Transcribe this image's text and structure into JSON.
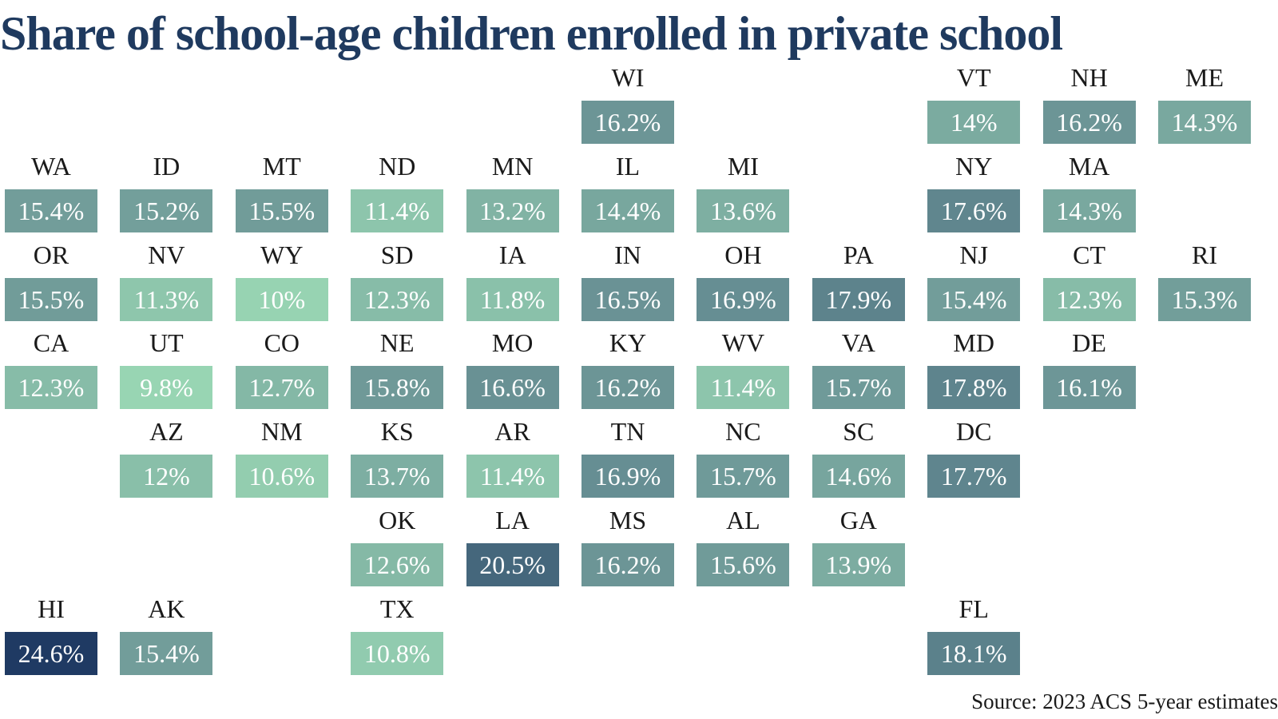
{
  "title": "Share of school-age children enrolled in private school",
  "source": "Source: 2023 ACS 5-year estimates",
  "color_scale": {
    "min_value": 9.8,
    "max_value": 24.6,
    "min_color": "#98d5b3",
    "mid_color": "#6a9295",
    "max_color": "#1f3a63"
  },
  "chart_data": {
    "type": "heatmap",
    "title": "Share of school-age children enrolled in private school",
    "unit": "%",
    "states": [
      {
        "abbr": "WI",
        "value": 16.2,
        "label": "16.2%",
        "row": 0,
        "col": 5
      },
      {
        "abbr": "VT",
        "value": 14,
        "label": "14%",
        "row": 0,
        "col": 8
      },
      {
        "abbr": "NH",
        "value": 16.2,
        "label": "16.2%",
        "row": 0,
        "col": 9
      },
      {
        "abbr": "ME",
        "value": 14.3,
        "label": "14.3%",
        "row": 0,
        "col": 10
      },
      {
        "abbr": "WA",
        "value": 15.4,
        "label": "15.4%",
        "row": 1,
        "col": 0
      },
      {
        "abbr": "ID",
        "value": 15.2,
        "label": "15.2%",
        "row": 1,
        "col": 1
      },
      {
        "abbr": "MT",
        "value": 15.5,
        "label": "15.5%",
        "row": 1,
        "col": 2
      },
      {
        "abbr": "ND",
        "value": 11.4,
        "label": "11.4%",
        "row": 1,
        "col": 3
      },
      {
        "abbr": "MN",
        "value": 13.2,
        "label": "13.2%",
        "row": 1,
        "col": 4
      },
      {
        "abbr": "IL",
        "value": 14.4,
        "label": "14.4%",
        "row": 1,
        "col": 5
      },
      {
        "abbr": "MI",
        "value": 13.6,
        "label": "13.6%",
        "row": 1,
        "col": 6
      },
      {
        "abbr": "NY",
        "value": 17.6,
        "label": "17.6%",
        "row": 1,
        "col": 8
      },
      {
        "abbr": "MA",
        "value": 14.3,
        "label": "14.3%",
        "row": 1,
        "col": 9
      },
      {
        "abbr": "OR",
        "value": 15.5,
        "label": "15.5%",
        "row": 2,
        "col": 0
      },
      {
        "abbr": "NV",
        "value": 11.3,
        "label": "11.3%",
        "row": 2,
        "col": 1
      },
      {
        "abbr": "WY",
        "value": 10,
        "label": "10%",
        "row": 2,
        "col": 2
      },
      {
        "abbr": "SD",
        "value": 12.3,
        "label": "12.3%",
        "row": 2,
        "col": 3
      },
      {
        "abbr": "IA",
        "value": 11.8,
        "label": "11.8%",
        "row": 2,
        "col": 4
      },
      {
        "abbr": "IN",
        "value": 16.5,
        "label": "16.5%",
        "row": 2,
        "col": 5
      },
      {
        "abbr": "OH",
        "value": 16.9,
        "label": "16.9%",
        "row": 2,
        "col": 6
      },
      {
        "abbr": "PA",
        "value": 17.9,
        "label": "17.9%",
        "row": 2,
        "col": 7
      },
      {
        "abbr": "NJ",
        "value": 15.4,
        "label": "15.4%",
        "row": 2,
        "col": 8
      },
      {
        "abbr": "CT",
        "value": 12.3,
        "label": "12.3%",
        "row": 2,
        "col": 9
      },
      {
        "abbr": "RI",
        "value": 15.3,
        "label": "15.3%",
        "row": 2,
        "col": 10
      },
      {
        "abbr": "CA",
        "value": 12.3,
        "label": "12.3%",
        "row": 3,
        "col": 0
      },
      {
        "abbr": "UT",
        "value": 9.8,
        "label": "9.8%",
        "row": 3,
        "col": 1
      },
      {
        "abbr": "CO",
        "value": 12.7,
        "label": "12.7%",
        "row": 3,
        "col": 2
      },
      {
        "abbr": "NE",
        "value": 15.8,
        "label": "15.8%",
        "row": 3,
        "col": 3
      },
      {
        "abbr": "MO",
        "value": 16.6,
        "label": "16.6%",
        "row": 3,
        "col": 4
      },
      {
        "abbr": "KY",
        "value": 16.2,
        "label": "16.2%",
        "row": 3,
        "col": 5
      },
      {
        "abbr": "WV",
        "value": 11.4,
        "label": "11.4%",
        "row": 3,
        "col": 6
      },
      {
        "abbr": "VA",
        "value": 15.7,
        "label": "15.7%",
        "row": 3,
        "col": 7
      },
      {
        "abbr": "MD",
        "value": 17.8,
        "label": "17.8%",
        "row": 3,
        "col": 8
      },
      {
        "abbr": "DE",
        "value": 16.1,
        "label": "16.1%",
        "row": 3,
        "col": 9
      },
      {
        "abbr": "AZ",
        "value": 12,
        "label": "12%",
        "row": 4,
        "col": 1
      },
      {
        "abbr": "NM",
        "value": 10.6,
        "label": "10.6%",
        "row": 4,
        "col": 2
      },
      {
        "abbr": "KS",
        "value": 13.7,
        "label": "13.7%",
        "row": 4,
        "col": 3
      },
      {
        "abbr": "AR",
        "value": 11.4,
        "label": "11.4%",
        "row": 4,
        "col": 4
      },
      {
        "abbr": "TN",
        "value": 16.9,
        "label": "16.9%",
        "row": 4,
        "col": 5
      },
      {
        "abbr": "NC",
        "value": 15.7,
        "label": "15.7%",
        "row": 4,
        "col": 6
      },
      {
        "abbr": "SC",
        "value": 14.6,
        "label": "14.6%",
        "row": 4,
        "col": 7
      },
      {
        "abbr": "DC",
        "value": 17.7,
        "label": "17.7%",
        "row": 4,
        "col": 8
      },
      {
        "abbr": "OK",
        "value": 12.6,
        "label": "12.6%",
        "row": 5,
        "col": 3
      },
      {
        "abbr": "LA",
        "value": 20.5,
        "label": "20.5%",
        "row": 5,
        "col": 4
      },
      {
        "abbr": "MS",
        "value": 16.2,
        "label": "16.2%",
        "row": 5,
        "col": 5
      },
      {
        "abbr": "AL",
        "value": 15.6,
        "label": "15.6%",
        "row": 5,
        "col": 6
      },
      {
        "abbr": "GA",
        "value": 13.9,
        "label": "13.9%",
        "row": 5,
        "col": 7
      },
      {
        "abbr": "HI",
        "value": 24.6,
        "label": "24.6%",
        "row": 6,
        "col": 0
      },
      {
        "abbr": "AK",
        "value": 15.4,
        "label": "15.4%",
        "row": 6,
        "col": 1
      },
      {
        "abbr": "TX",
        "value": 10.8,
        "label": "10.8%",
        "row": 6,
        "col": 3
      },
      {
        "abbr": "FL",
        "value": 18.1,
        "label": "18.1%",
        "row": 6,
        "col": 8
      }
    ]
  }
}
